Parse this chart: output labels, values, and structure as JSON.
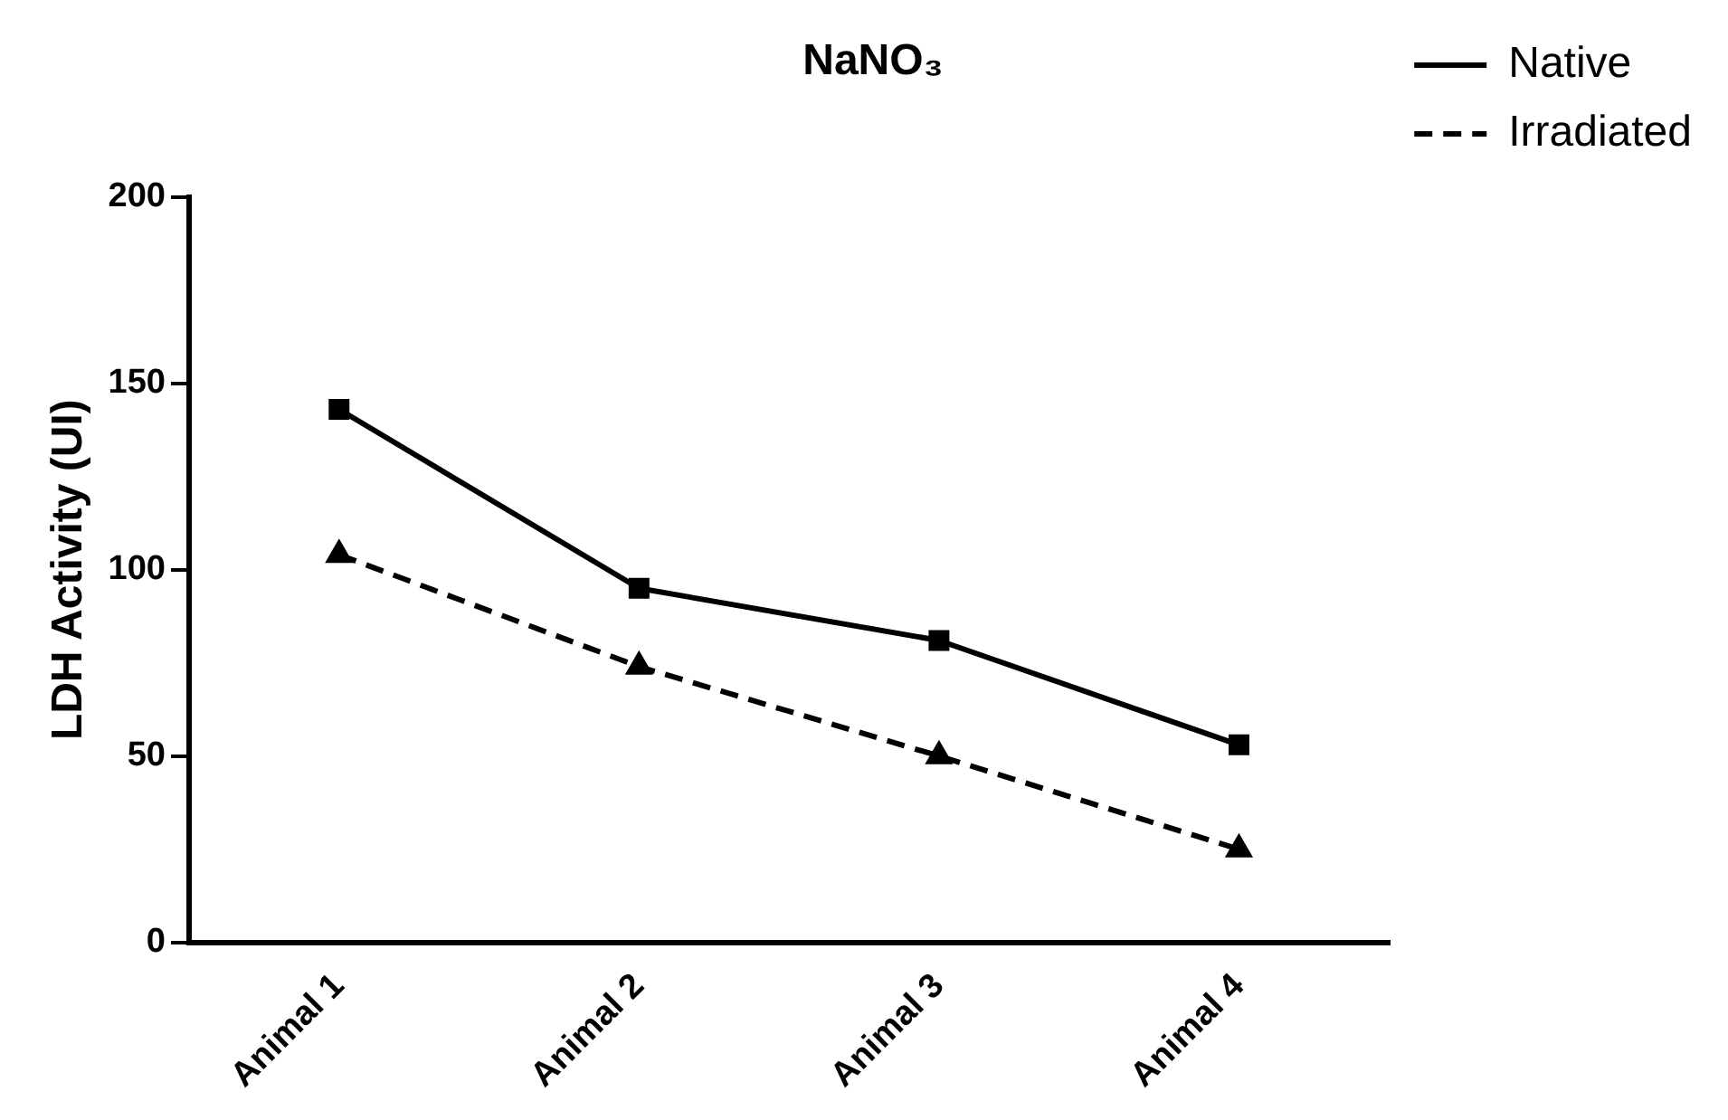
{
  "chart_data": {
    "type": "line",
    "title": "NaNO₃",
    "ylabel": "LDH Activity (UI)",
    "categories": [
      "Animal 1",
      "Animal 2",
      "Animal 3",
      "Animal 4"
    ],
    "series": [
      {
        "name": "Native",
        "color": "#000000",
        "values": [
          143,
          95,
          81,
          53
        ],
        "marker": "square",
        "line_style": "solid"
      },
      {
        "name": "Irradiated",
        "color": "#000000",
        "values": [
          104,
          74,
          50,
          25
        ],
        "marker": "triangle",
        "line_style": "dashed"
      }
    ],
    "ylim": [
      0,
      200
    ],
    "yticks": [
      0,
      50,
      100,
      150,
      200
    ],
    "grid": false,
    "legend": "right"
  }
}
